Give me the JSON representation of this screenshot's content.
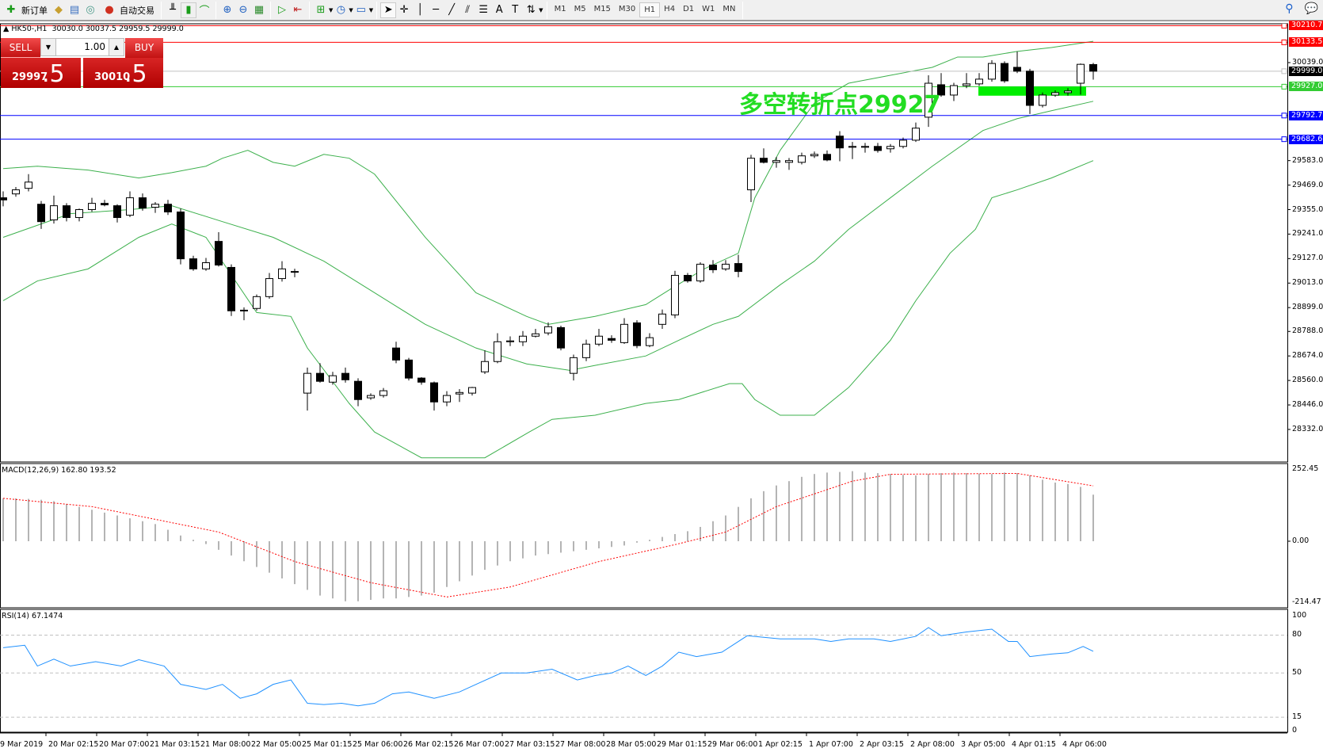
{
  "toolbar": {
    "new_order": "新订单",
    "auto_trading": "自动交易",
    "timeframes": [
      "M1",
      "M5",
      "M15",
      "M30",
      "H1",
      "H4",
      "D1",
      "W1",
      "MN"
    ],
    "active_timeframe": "H1"
  },
  "chart_header": {
    "symbol": "HK50-,H1",
    "open": "30030.0",
    "high": "30037.5",
    "low": "29959.5",
    "close": "29999.0"
  },
  "trade_panel": {
    "sell_label": "SELL",
    "buy_label": "BUY",
    "volume": "1.00",
    "sell_price_main": "29997",
    "sell_price_frac": ".5",
    "buy_price_main": "30010",
    "buy_price_frac": ".5"
  },
  "annotation": {
    "text": "多空转折点29927",
    "color": "#22dd22"
  },
  "price_axis": {
    "labels": [
      "30039.0",
      "29583.0",
      "29469.0",
      "29355.0",
      "29241.0",
      "29127.0",
      "29013.0",
      "28899.0",
      "28788.0",
      "28674.0",
      "28560.0",
      "28446.0",
      "28332.0"
    ]
  },
  "levels": [
    {
      "price": "30210.7",
      "color": "#ff0000"
    },
    {
      "price": "30133.5",
      "color": "#ff0000"
    },
    {
      "price": "29999.0",
      "color": "#000000",
      "line": "#c0c0c0"
    },
    {
      "price": "29927.0",
      "color": "#33cc33"
    },
    {
      "price": "29792.7",
      "color": "#0000ff"
    },
    {
      "price": "29682.6",
      "color": "#0000ff"
    }
  ],
  "macd": {
    "label": "MACD(12,26,9) 162.80 193.52",
    "axis": [
      "252.45",
      "0.00",
      "-214.47"
    ]
  },
  "rsi": {
    "label": "RSI(14) 67.1474",
    "axis": [
      "100",
      "80",
      "50",
      "15",
      "0"
    ]
  },
  "time_axis": [
    "19 Mar 2019",
    "20 Mar 02:15",
    "20 Mar 07:00",
    "21 Mar 03:15",
    "21 Mar 08:00",
    "22 Mar 05:00",
    "25 Mar 01:15",
    "25 Mar 06:00",
    "26 Mar 02:15",
    "26 Mar 07:00",
    "27 Mar 03:15",
    "27 Mar 08:00",
    "28 Mar 05:00",
    "29 Mar 01:15",
    "29 Mar 06:00",
    "1 Apr 02:15",
    "1 Apr 07:00",
    "2 Apr 03:15",
    "2 Apr 08:00",
    "3 Apr 05:00",
    "4 Apr 01:15",
    "4 Apr 06:00"
  ],
  "chart_data": {
    "type": "candlestick",
    "ylim": [
      28185,
      30220
    ],
    "candles_ohlc": [
      [
        29410,
        29440,
        29370,
        29400
      ],
      [
        29428,
        29460,
        29415,
        29447
      ],
      [
        29454,
        29520,
        29440,
        29483
      ],
      [
        29380,
        29395,
        29265,
        29299
      ],
      [
        29307,
        29420,
        29290,
        29373
      ],
      [
        29373,
        29385,
        29300,
        29318
      ],
      [
        29318,
        29360,
        29300,
        29355
      ],
      [
        29355,
        29410,
        29345,
        29384
      ],
      [
        29384,
        29400,
        29370,
        29377
      ],
      [
        29373,
        29380,
        29295,
        29318
      ],
      [
        29329,
        29440,
        29320,
        29410
      ],
      [
        29410,
        29430,
        29350,
        29362
      ],
      [
        29366,
        29390,
        29340,
        29380
      ],
      [
        29380,
        29400,
        29330,
        29344
      ],
      [
        29344,
        29360,
        29100,
        29126
      ],
      [
        29126,
        29140,
        29070,
        29079
      ],
      [
        29079,
        29130,
        29070,
        29108
      ],
      [
        29207,
        29250,
        29090,
        29097
      ],
      [
        29086,
        29100,
        28860,
        28884
      ],
      [
        28884,
        28900,
        28840,
        28887
      ],
      [
        28895,
        28960,
        28885,
        28950
      ],
      [
        28950,
        29060,
        28940,
        29034
      ],
      [
        29034,
        29115,
        29020,
        29079
      ],
      [
        29067,
        29080,
        29040,
        29067
      ],
      [
        28501,
        28620,
        28420,
        28593
      ],
      [
        28593,
        28640,
        28550,
        28556
      ],
      [
        28552,
        28600,
        28540,
        28582
      ],
      [
        28593,
        28620,
        28550,
        28563
      ],
      [
        28556,
        28570,
        28440,
        28471
      ],
      [
        28479,
        28500,
        28470,
        28490
      ],
      [
        28490,
        28525,
        28480,
        28512
      ],
      [
        28711,
        28740,
        28640,
        28655
      ],
      [
        28655,
        28665,
        28560,
        28571
      ],
      [
        28571,
        28575,
        28540,
        28552
      ],
      [
        28549,
        28555,
        28420,
        28460
      ],
      [
        28460,
        28510,
        28440,
        28490
      ],
      [
        28497,
        28520,
        28460,
        28504
      ],
      [
        28501,
        28530,
        28490,
        28527
      ],
      [
        28600,
        28700,
        28590,
        28648
      ],
      [
        28648,
        28780,
        28640,
        28740
      ],
      [
        28740,
        28765,
        28720,
        28744
      ],
      [
        28740,
        28790,
        28720,
        28766
      ],
      [
        28766,
        28800,
        28760,
        28777
      ],
      [
        28781,
        28830,
        28770,
        28810
      ],
      [
        28806,
        28815,
        28700,
        28711
      ],
      [
        28593,
        28680,
        28560,
        28666
      ],
      [
        28666,
        28750,
        28650,
        28729
      ],
      [
        28729,
        28800,
        28720,
        28766
      ],
      [
        28755,
        28770,
        28735,
        28747
      ],
      [
        28736,
        28850,
        28730,
        28821
      ],
      [
        28828,
        28840,
        28710,
        28722
      ],
      [
        28722,
        28780,
        28715,
        28759
      ],
      [
        28821,
        28890,
        28800,
        28869
      ],
      [
        28865,
        29070,
        28850,
        29049
      ],
      [
        29049,
        29060,
        29015,
        29023
      ],
      [
        29023,
        29110,
        29015,
        29101
      ],
      [
        29097,
        29120,
        29060,
        29075
      ],
      [
        29079,
        29120,
        29070,
        29101
      ],
      [
        29104,
        29145,
        29040,
        29067
      ],
      [
        29447,
        29610,
        29390,
        29594
      ],
      [
        29594,
        29640,
        29570,
        29575
      ],
      [
        29575,
        29600,
        29550,
        29583
      ],
      [
        29575,
        29595,
        29540,
        29583
      ],
      [
        29575,
        29620,
        29565,
        29605
      ],
      [
        29605,
        29625,
        29595,
        29612
      ],
      [
        29612,
        29630,
        29580,
        29586
      ],
      [
        29697,
        29720,
        29580,
        29642
      ],
      [
        29645,
        29670,
        29590,
        29649
      ],
      [
        29645,
        29665,
        29620,
        29649
      ],
      [
        29649,
        29665,
        29620,
        29630
      ],
      [
        29638,
        29660,
        29620,
        29649
      ],
      [
        29649,
        29690,
        29640,
        29678
      ],
      [
        29678,
        29760,
        29670,
        29734
      ],
      [
        29785,
        29980,
        29740,
        29943
      ],
      [
        29936,
        29990,
        29880,
        29888
      ],
      [
        29888,
        29945,
        29860,
        29932
      ],
      [
        29932,
        29990,
        29920,
        29940
      ],
      [
        29940,
        29990,
        29930,
        29962
      ],
      [
        29962,
        30050,
        29950,
        30035
      ],
      [
        30035,
        30045,
        29945,
        29954
      ],
      [
        30017,
        30090,
        29990,
        29999
      ],
      [
        29999,
        30010,
        29800,
        29840
      ],
      [
        29840,
        29900,
        29830,
        29888
      ],
      [
        29888,
        29910,
        29880,
        29899
      ],
      [
        29899,
        29920,
        29885,
        29907
      ],
      [
        29943,
        30035,
        29890,
        30031
      ],
      [
        30030,
        30037.5,
        29959.5,
        29999
      ]
    ],
    "bollinger_upper": [
      [
        0,
        29546
      ],
      [
        2.7,
        29557
      ],
      [
        6.7,
        29539
      ],
      [
        10.7,
        29502
      ],
      [
        13.3,
        29527
      ],
      [
        16,
        29557
      ],
      [
        17.3,
        29594
      ],
      [
        19.3,
        29631
      ],
      [
        21.3,
        29575
      ],
      [
        23,
        29557
      ],
      [
        25.3,
        29612
      ],
      [
        27.3,
        29594
      ],
      [
        29.3,
        29520
      ],
      [
        33.3,
        29226
      ],
      [
        37.3,
        28968
      ],
      [
        41.3,
        28858
      ],
      [
        43,
        28821
      ],
      [
        46.7,
        28858
      ],
      [
        50.7,
        28913
      ],
      [
        52.7,
        28987
      ],
      [
        55.3,
        29079
      ],
      [
        58,
        29152
      ],
      [
        59.3,
        29410
      ],
      [
        61.3,
        29631
      ],
      [
        64,
        29851
      ],
      [
        66.7,
        29943
      ],
      [
        70,
        29980
      ],
      [
        73.3,
        30017
      ],
      [
        75.3,
        30065
      ],
      [
        77.3,
        30065
      ],
      [
        80,
        30091
      ],
      [
        82.7,
        30109
      ],
      [
        86,
        30138
      ]
    ],
    "bollinger_middle": [
      [
        0,
        29226
      ],
      [
        5.3,
        29336
      ],
      [
        10,
        29355
      ],
      [
        13.3,
        29373
      ],
      [
        17.3,
        29299
      ],
      [
        21.3,
        29226
      ],
      [
        25.3,
        29115
      ],
      [
        29.3,
        28968
      ],
      [
        33.3,
        28821
      ],
      [
        37.3,
        28711
      ],
      [
        41.3,
        28637
      ],
      [
        44.7,
        28607
      ],
      [
        46.7,
        28630
      ],
      [
        50.7,
        28674
      ],
      [
        53.3,
        28747
      ],
      [
        56,
        28821
      ],
      [
        58,
        28858
      ],
      [
        61.3,
        29005
      ],
      [
        64,
        29115
      ],
      [
        66.7,
        29263
      ],
      [
        70,
        29410
      ],
      [
        73.3,
        29557
      ],
      [
        77.3,
        29723
      ],
      [
        80,
        29778
      ],
      [
        82.7,
        29815
      ],
      [
        86,
        29859
      ]
    ],
    "bollinger_lower": [
      [
        0,
        28931
      ],
      [
        2.7,
        29023
      ],
      [
        6.7,
        29079
      ],
      [
        10.7,
        29226
      ],
      [
        13.3,
        29288
      ],
      [
        16,
        29226
      ],
      [
        20,
        28876
      ],
      [
        22.7,
        28858
      ],
      [
        24,
        28711
      ],
      [
        27.3,
        28453
      ],
      [
        29.3,
        28320
      ],
      [
        33,
        28200
      ],
      [
        38,
        28200
      ],
      [
        41.5,
        28320
      ],
      [
        43.3,
        28379
      ],
      [
        46.7,
        28398
      ],
      [
        50.7,
        28453
      ],
      [
        53.3,
        28471
      ],
      [
        57.3,
        28545
      ],
      [
        58.3,
        28545
      ],
      [
        59.3,
        28471
      ],
      [
        61.3,
        28398
      ],
      [
        64,
        28398
      ],
      [
        66.7,
        28527
      ],
      [
        70,
        28747
      ],
      [
        72,
        28931
      ],
      [
        74.7,
        29152
      ],
      [
        76.7,
        29263
      ],
      [
        78,
        29410
      ],
      [
        80,
        29447
      ],
      [
        82.7,
        29502
      ],
      [
        86,
        29583
      ]
    ],
    "macd_histogram": [
      150,
      150,
      148,
      145,
      140,
      130,
      120,
      110,
      100,
      90,
      80,
      70,
      60,
      40,
      20,
      5,
      -10,
      -30,
      -50,
      -70,
      -90,
      -110,
      -130,
      -150,
      -170,
      -190,
      -200,
      -210,
      -210,
      -205,
      -200,
      -200,
      -195,
      -190,
      -180,
      -160,
      -140,
      -120,
      -100,
      -85,
      -70,
      -60,
      -50,
      -45,
      -40,
      -35,
      -30,
      -25,
      -20,
      -15,
      -5,
      5,
      15,
      25,
      35,
      50,
      70,
      90,
      120,
      150,
      175,
      195,
      210,
      225,
      235,
      240,
      242,
      245,
      240,
      238,
      235,
      232,
      230,
      235,
      238,
      240,
      238,
      236,
      235,
      240,
      238,
      230,
      215,
      205,
      200,
      190,
      162.8
    ],
    "macd_signal": [
      [
        0,
        150
      ],
      [
        7,
        121
      ],
      [
        17,
        32
      ],
      [
        23,
        -71
      ],
      [
        29,
        -145
      ],
      [
        35,
        -195
      ],
      [
        40,
        -160
      ],
      [
        47,
        -71
      ],
      [
        53,
        -12
      ],
      [
        57,
        32
      ],
      [
        61,
        121
      ],
      [
        67,
        210
      ],
      [
        70,
        234
      ],
      [
        80,
        237
      ],
      [
        86,
        193.52
      ]
    ],
    "macd_range": [
      -214.47,
      252.45
    ],
    "rsi": [
      [
        0,
        70
      ],
      [
        1.7,
        72
      ],
      [
        2.7,
        55.5
      ],
      [
        4,
        61
      ],
      [
        5.3,
        55.5
      ],
      [
        7.3,
        59
      ],
      [
        9.3,
        55.5
      ],
      [
        10.7,
        60.5
      ],
      [
        12.7,
        55.5
      ],
      [
        14,
        41
      ],
      [
        16,
        37
      ],
      [
        17.3,
        41
      ],
      [
        18.7,
        30
      ],
      [
        20,
        33.5
      ],
      [
        21.3,
        41
      ],
      [
        22.7,
        44.5
      ],
      [
        24,
        26
      ],
      [
        25.3,
        25
      ],
      [
        26.7,
        26
      ],
      [
        28,
        24
      ],
      [
        29.3,
        26
      ],
      [
        30.7,
        33.5
      ],
      [
        32,
        35
      ],
      [
        34,
        30
      ],
      [
        36,
        35
      ],
      [
        37.3,
        41
      ],
      [
        39.3,
        50
      ],
      [
        41.3,
        50
      ],
      [
        43.3,
        53
      ],
      [
        45.3,
        44.5
      ],
      [
        46.7,
        48
      ],
      [
        48,
        50
      ],
      [
        49.3,
        55.5
      ],
      [
        50.7,
        48
      ],
      [
        52,
        55.5
      ],
      [
        53.3,
        66.5
      ],
      [
        54.7,
        63
      ],
      [
        56.7,
        66.5
      ],
      [
        58.7,
        79.5
      ],
      [
        61.3,
        77
      ],
      [
        64,
        77
      ],
      [
        65.3,
        75
      ],
      [
        66.7,
        77
      ],
      [
        68.7,
        77
      ],
      [
        70,
        75
      ],
      [
        72,
        79
      ],
      [
        73,
        86
      ],
      [
        74,
        79.5
      ],
      [
        76,
        82.5
      ],
      [
        78,
        84.7
      ],
      [
        79.3,
        75
      ],
      [
        80,
        75
      ],
      [
        81,
        63
      ],
      [
        82.7,
        65
      ],
      [
        84,
        66
      ],
      [
        85.2,
        71
      ],
      [
        86,
        67.15
      ]
    ],
    "rsi_levels": [
      80,
      50,
      15
    ]
  }
}
